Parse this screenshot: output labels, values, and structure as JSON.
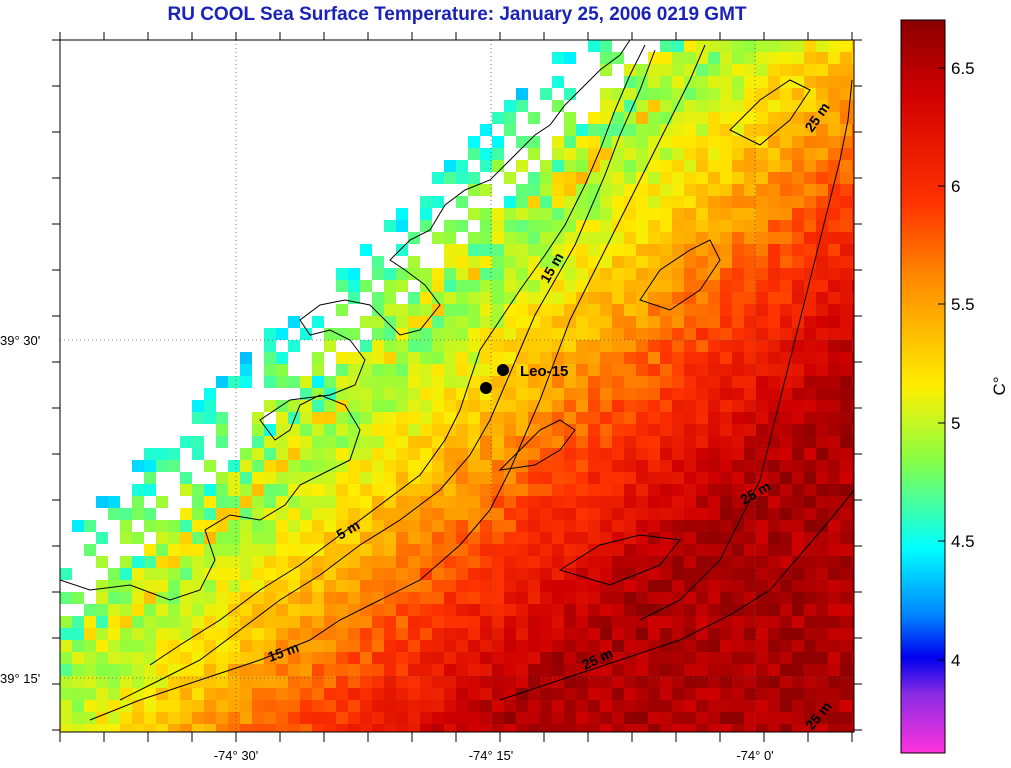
{
  "title": "RU COOL  Sea Surface Temperature:  January 25, 2006 0219 GMT",
  "map": {
    "lon_ticks": [
      "-74° 30'",
      "-74° 15'",
      "-74° 0'"
    ],
    "lat_ticks": [
      "39° 30'",
      "39° 15'"
    ],
    "station_label": "Leo-15",
    "contour_labels": [
      "15 m",
      "25 m",
      "5 m",
      "25 m",
      "15 m",
      "25 m",
      "25 m"
    ]
  },
  "colorbar": {
    "unit_label": "C°",
    "ticks": [
      "6.5",
      "6",
      "5.5",
      "5",
      "4.5",
      "4"
    ],
    "colors": {
      "top": "#8b0000",
      "red": "#ff1a00",
      "orange": "#ff9900",
      "yellow": "#ffff00",
      "green": "#66ff66",
      "cyan": "#00ffff",
      "blue": "#0033ff",
      "purple": "#7f33cc",
      "magenta": "#ff33cc"
    }
  }
}
